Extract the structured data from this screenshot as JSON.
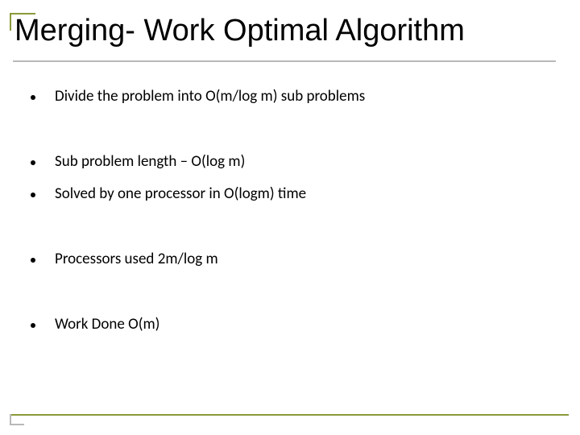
{
  "title": {
    "text": "Merging- Work Optimal Algorithm",
    "fontsize": 38,
    "color": "#000000",
    "accent_color": "#8a9a3b",
    "underline_color": "#b8b8b8"
  },
  "bullets": [
    {
      "text": "Divide the problem into O(m/log m) sub problems",
      "gap": "lg"
    },
    {
      "text": "Sub problem length – O(log m)",
      "gap": "sm"
    },
    {
      "text": "Solved by one processor in O(logm) time",
      "gap": "lg"
    },
    {
      "text": "Processors used 2m/log m",
      "gap": "lg"
    },
    {
      "text": "Work Done O(m)",
      "gap": "lg"
    }
  ],
  "body_style": {
    "fontsize": 19,
    "color": "#000000",
    "bullet_color": "#000000"
  },
  "decor": {
    "bottom_rule_color": "#8a9a3b",
    "bottom_corner_color": "#b8b8b8"
  },
  "background_color": "#ffffff"
}
